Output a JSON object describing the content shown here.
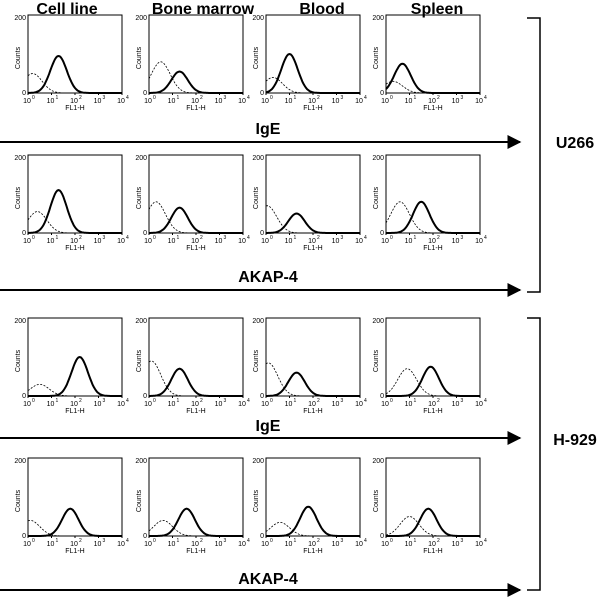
{
  "columns": [
    "Cell line",
    "Bone marrow",
    "Blood",
    "Spleen"
  ],
  "axes": {
    "y_label": "Counts",
    "y_ticks": [
      "0",
      "200"
    ],
    "x_label": "FL1-H",
    "x_ticks": [
      {
        "base": "10",
        "exp": "0"
      },
      {
        "base": "10",
        "exp": "1"
      },
      {
        "base": "10",
        "exp": "2"
      },
      {
        "base": "10",
        "exp": "3"
      },
      {
        "base": "10",
        "exp": "4"
      }
    ]
  },
  "rows": [
    {
      "marker": "IgE",
      "panels": [
        {
          "solid": {
            "peak": 1.3,
            "height": 95
          },
          "dashed": {
            "peak": 0.2,
            "height": 50
          }
        },
        {
          "solid": {
            "peak": 1.3,
            "height": 55
          },
          "dashed": {
            "peak": 0.5,
            "height": 80
          }
        },
        {
          "solid": {
            "peak": 1.0,
            "height": 100
          },
          "dashed": {
            "peak": 0.3,
            "height": 40
          }
        },
        {
          "solid": {
            "peak": 0.7,
            "height": 75
          },
          "dashed": {
            "peak": 0.3,
            "height": 30
          }
        }
      ]
    },
    {
      "marker": "AKAP-4",
      "panels": [
        {
          "solid": {
            "peak": 1.3,
            "height": 110
          },
          "dashed": {
            "peak": 0.4,
            "height": 55
          }
        },
        {
          "solid": {
            "peak": 1.3,
            "height": 65
          },
          "dashed": {
            "peak": 0.3,
            "height": 80
          }
        },
        {
          "solid": {
            "peak": 1.3,
            "height": 50
          },
          "dashed": {
            "peak": 0.05,
            "height": 70
          }
        },
        {
          "solid": {
            "peak": 1.5,
            "height": 80
          },
          "dashed": {
            "peak": 0.6,
            "height": 80
          }
        }
      ]
    },
    {
      "marker": "IgE",
      "panels": [
        {
          "solid": {
            "peak": 2.2,
            "height": 100
          },
          "dashed": {
            "peak": 0.5,
            "height": 30
          }
        },
        {
          "solid": {
            "peak": 1.3,
            "height": 70
          },
          "dashed": {
            "peak": 0.1,
            "height": 90
          }
        },
        {
          "solid": {
            "peak": 1.3,
            "height": 60
          },
          "dashed": {
            "peak": 0.1,
            "height": 85
          }
        },
        {
          "solid": {
            "peak": 1.9,
            "height": 75
          },
          "dashed": {
            "peak": 0.9,
            "height": 70
          }
        }
      ]
    },
    {
      "marker": "AKAP-4",
      "panels": [
        {
          "solid": {
            "peak": 1.8,
            "height": 70
          },
          "dashed": {
            "peak": 0.1,
            "height": 40
          }
        },
        {
          "solid": {
            "peak": 1.6,
            "height": 70
          },
          "dashed": {
            "peak": 0.6,
            "height": 40
          }
        },
        {
          "solid": {
            "peak": 1.8,
            "height": 75
          },
          "dashed": {
            "peak": 0.6,
            "height": 35
          }
        },
        {
          "solid": {
            "peak": 1.8,
            "height": 70
          },
          "dashed": {
            "peak": 1.0,
            "height": 50
          }
        }
      ]
    }
  ],
  "groups": [
    "U266",
    "H-929"
  ]
}
